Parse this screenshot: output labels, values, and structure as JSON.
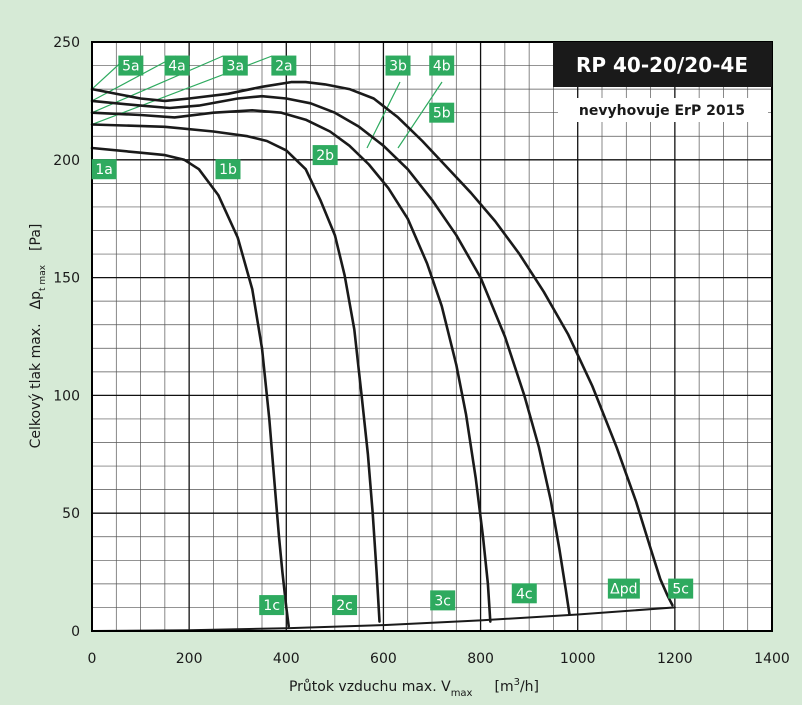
{
  "chart_data": {
    "type": "line",
    "title": "RP 40-20/20-4E",
    "subtitle": "nevyhovuje ErP 2015",
    "xlim": [
      0,
      1400
    ],
    "ylim": [
      0,
      250
    ],
    "x_ticks": [
      "0",
      "200",
      "400",
      "600",
      "800",
      "1000",
      "1200",
      "1400"
    ],
    "y_ticks": [
      "0",
      "50",
      "100",
      "150",
      "200",
      "250"
    ],
    "xlabel": {
      "main": "Průtok vzduchu max. V",
      "sub": "max",
      "unit_pre": "[m",
      "unit_sup": "3",
      "unit_post": "/h]"
    },
    "ylabel": {
      "main": "Celkový tlak max.",
      "delta": "Δp",
      "sub": "t max",
      "unit": "[Pa]"
    },
    "grid": true,
    "colors": {
      "line": "#1a1a1a",
      "tag": "#2eaa5f",
      "title_bg": "#1a1a1a",
      "background": "#d6ead6"
    },
    "series": [
      {
        "name": "1",
        "x": [
          0,
          100,
          150,
          190,
          220,
          260,
          300,
          330,
          350,
          365,
          375,
          385,
          392,
          400,
          405
        ],
        "y": [
          205,
          203,
          202,
          200,
          196,
          185,
          167,
          145,
          120,
          90,
          65,
          40,
          25,
          10,
          2
        ]
      },
      {
        "name": "2",
        "x": [
          0,
          150,
          250,
          320,
          360,
          400,
          440,
          470,
          500,
          520,
          540,
          555,
          568,
          578,
          586,
          592
        ],
        "y": [
          215,
          214,
          212,
          210,
          208,
          204,
          196,
          183,
          168,
          151,
          128,
          100,
          75,
          50,
          25,
          4
        ]
      },
      {
        "name": "3",
        "x": [
          0,
          100,
          170,
          250,
          330,
          390,
          440,
          490,
          530,
          570,
          610,
          650,
          690,
          720,
          750,
          770,
          790,
          805,
          815,
          820
        ],
        "y": [
          220,
          219,
          218,
          220,
          221,
          220,
          217,
          212,
          206,
          198,
          188,
          175,
          156,
          138,
          113,
          92,
          65,
          40,
          20,
          4
        ]
      },
      {
        "name": "4",
        "x": [
          0,
          100,
          160,
          220,
          300,
          350,
          400,
          450,
          500,
          550,
          600,
          650,
          700,
          750,
          800,
          850,
          890,
          920,
          945,
          962,
          975,
          983
        ],
        "y": [
          225,
          223,
          222,
          223,
          226,
          227,
          226,
          224,
          220,
          214,
          206,
          196,
          183,
          168,
          150,
          125,
          100,
          78,
          55,
          35,
          18,
          7
        ]
      },
      {
        "name": "5",
        "x": [
          0,
          100,
          150,
          200,
          280,
          350,
          410,
          440,
          480,
          530,
          580,
          630,
          680,
          730,
          780,
          830,
          880,
          930,
          980,
          1030,
          1080,
          1120,
          1150,
          1170,
          1185,
          1195
        ],
        "y": [
          230,
          226,
          225,
          226,
          228,
          231,
          233,
          233,
          232,
          230,
          226,
          218,
          208,
          197,
          186,
          174,
          160,
          144,
          126,
          104,
          78,
          55,
          35,
          22,
          15,
          11
        ]
      },
      {
        "name": "Δpd",
        "x": [
          0,
          200,
          400,
          600,
          800,
          1000,
          1200
        ],
        "y": [
          0,
          0.3,
          1.2,
          2.5,
          4.5,
          7,
          10
        ]
      }
    ],
    "point_labels": [
      {
        "text": "1a",
        "x": 25,
        "y": 196
      },
      {
        "text": "1b",
        "x": 280,
        "y": 196
      },
      {
        "text": "1c",
        "x": 370,
        "y": 11
      },
      {
        "text": "2a",
        "x": 395,
        "y": 240
      },
      {
        "text": "2b",
        "x": 480,
        "y": 202
      },
      {
        "text": "2c",
        "x": 520,
        "y": 11
      },
      {
        "text": "3a",
        "x": 295,
        "y": 240
      },
      {
        "text": "3b",
        "x": 630,
        "y": 240
      },
      {
        "text": "3c",
        "x": 722,
        "y": 13
      },
      {
        "text": "4a",
        "x": 175,
        "y": 240
      },
      {
        "text": "4b",
        "x": 720,
        "y": 240
      },
      {
        "text": "4c",
        "x": 890,
        "y": 16
      },
      {
        "text": "5a",
        "x": 80,
        "y": 240
      },
      {
        "text": "5b",
        "x": 720,
        "y": 220
      },
      {
        "text": "5c",
        "x": 1212,
        "y": 18
      },
      {
        "text": "Δpd",
        "x": 1095,
        "y": 18
      }
    ]
  }
}
